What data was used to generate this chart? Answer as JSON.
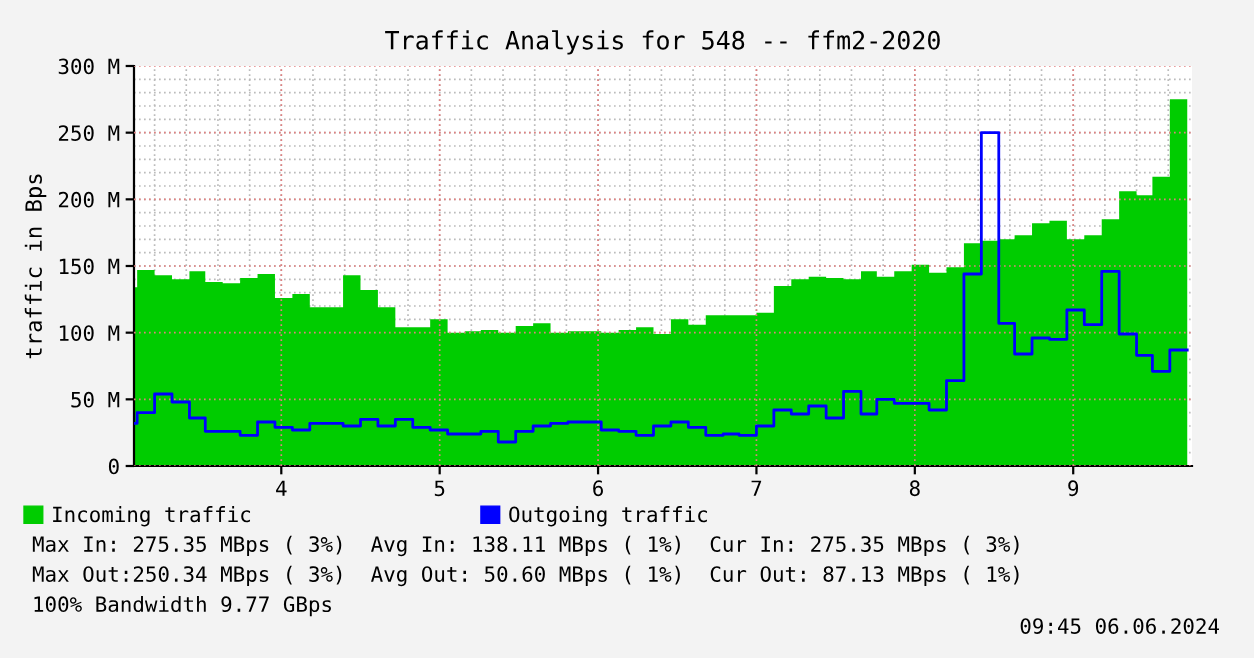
{
  "chart_data": {
    "type": "area",
    "title": "Traffic Analysis for 548 -- ffm2-2020",
    "ylabel": "traffic in Bps",
    "x": [
      3.07,
      3.09,
      3.2,
      3.31,
      3.42,
      3.52,
      3.63,
      3.74,
      3.85,
      3.96,
      4.07,
      4.18,
      4.29,
      4.39,
      4.5,
      4.61,
      4.72,
      4.83,
      4.94,
      5.05,
      5.16,
      5.26,
      5.37,
      5.48,
      5.59,
      5.7,
      5.81,
      5.92,
      6.02,
      6.13,
      6.24,
      6.35,
      6.46,
      6.57,
      6.68,
      6.79,
      6.89,
      7.0,
      7.11,
      7.22,
      7.33,
      7.44,
      7.55,
      7.66,
      7.76,
      7.87,
      7.98,
      8.09,
      8.2,
      8.31,
      8.42,
      8.53,
      8.63,
      8.74,
      8.85,
      8.96,
      9.07,
      9.18,
      9.29,
      9.4,
      9.5,
      9.61,
      9.72
    ],
    "series": [
      {
        "name": "Incoming traffic",
        "color": "#00cc00",
        "values": [
          134,
          147,
          143,
          140,
          146,
          138,
          137,
          141,
          144,
          126,
          129,
          119,
          119,
          143,
          132,
          119,
          104,
          104,
          110,
          100,
          101,
          102,
          100,
          105,
          107,
          100,
          101,
          101,
          100,
          102,
          104,
          99,
          110,
          106,
          113,
          113,
          113,
          115,
          135,
          140,
          142,
          141,
          140,
          146,
          142,
          146,
          151,
          145,
          149,
          167,
          169,
          170,
          173,
          182,
          184,
          170,
          173,
          185,
          206,
          203,
          217,
          275,
          275
        ]
      },
      {
        "name": "Outgoing traffic",
        "type": "step",
        "color": "#0000ff",
        "values": [
          32,
          40,
          54,
          48,
          36,
          26,
          26,
          23,
          33,
          29,
          27,
          32,
          32,
          30,
          35,
          30,
          35,
          29,
          27,
          24,
          24,
          26,
          18,
          26,
          30,
          32,
          33,
          33,
          27,
          26,
          23,
          30,
          33,
          29,
          23,
          24,
          23,
          30,
          42,
          39,
          45,
          36,
          56,
          39,
          50,
          47,
          47,
          42,
          64,
          144,
          250,
          107,
          84,
          96,
          95,
          117,
          106,
          146,
          99,
          83,
          71,
          87,
          87
        ]
      }
    ],
    "xlim": [
      3.07,
      9.75
    ],
    "ylim": [
      0,
      300
    ],
    "xticks": [
      4,
      5,
      6,
      7,
      8,
      9
    ],
    "yticks": [
      {
        "value": 0,
        "label": "0"
      },
      {
        "value": 50,
        "label": "50 M"
      },
      {
        "value": 100,
        "label": "100 M"
      },
      {
        "value": 150,
        "label": "150 M"
      },
      {
        "value": 200,
        "label": "200 M"
      },
      {
        "value": 250,
        "label": "250 M"
      },
      {
        "value": 300,
        "label": "300 M"
      }
    ],
    "grid": true,
    "legend": "bottom left",
    "annotations": [
      "Max In: 275.35 MBps ( 3%)  Avg In: 138.11 MBps ( 1%)  Cur In: 275.35 MBps ( 3%)",
      "Max Out:250.34 MBps ( 3%)  Avg Out: 50.60 MBps ( 1%)  Cur Out: 87.13 MBps ( 1%)",
      "100% Bandwidth 9.77 GBps",
      "09:45 06.06.2024"
    ]
  }
}
